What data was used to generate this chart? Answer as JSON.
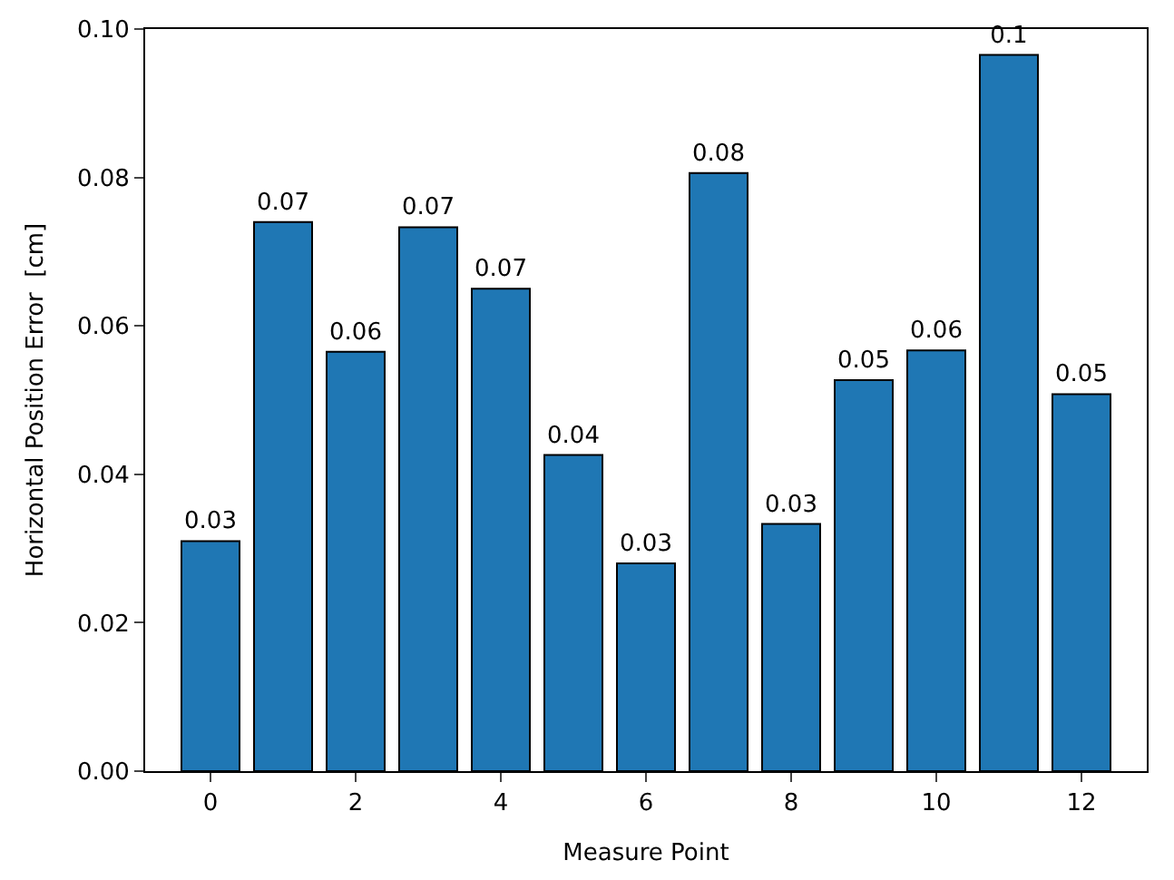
{
  "chart_data": {
    "type": "bar",
    "xlabel": "Measure Point",
    "ylabel": "Horizontal Position Error  [cm]",
    "x": [
      0,
      1,
      2,
      3,
      4,
      5,
      6,
      7,
      8,
      9,
      10,
      11,
      12
    ],
    "values": [
      0.031,
      0.074,
      0.0565,
      0.0733,
      0.065,
      0.0426,
      0.028,
      0.0806,
      0.0333,
      0.0527,
      0.0567,
      0.0965,
      0.0508
    ],
    "value_labels": [
      "0.03",
      "0.07",
      "0.06",
      "0.07",
      "0.07",
      "0.04",
      "0.03",
      "0.08",
      "0.03",
      "0.05",
      "0.06",
      "0.1",
      "0.05"
    ],
    "color": "#1f77b4",
    "xlim": [
      -0.9,
      12.9
    ],
    "xticks": [
      0,
      2,
      4,
      6,
      8,
      10,
      12
    ],
    "ylim": [
      0,
      0.1
    ],
    "yticks": [
      {
        "value": 0,
        "label": "0.00"
      },
      {
        "value": 0.02,
        "label": "0.02"
      },
      {
        "value": 0.04,
        "label": "0.04"
      },
      {
        "value": 0.06,
        "label": "0.06"
      },
      {
        "value": 0.08,
        "label": "0.08"
      },
      {
        "value": 0.1,
        "label": "0.10"
      }
    ],
    "grid": false,
    "legend": false
  }
}
